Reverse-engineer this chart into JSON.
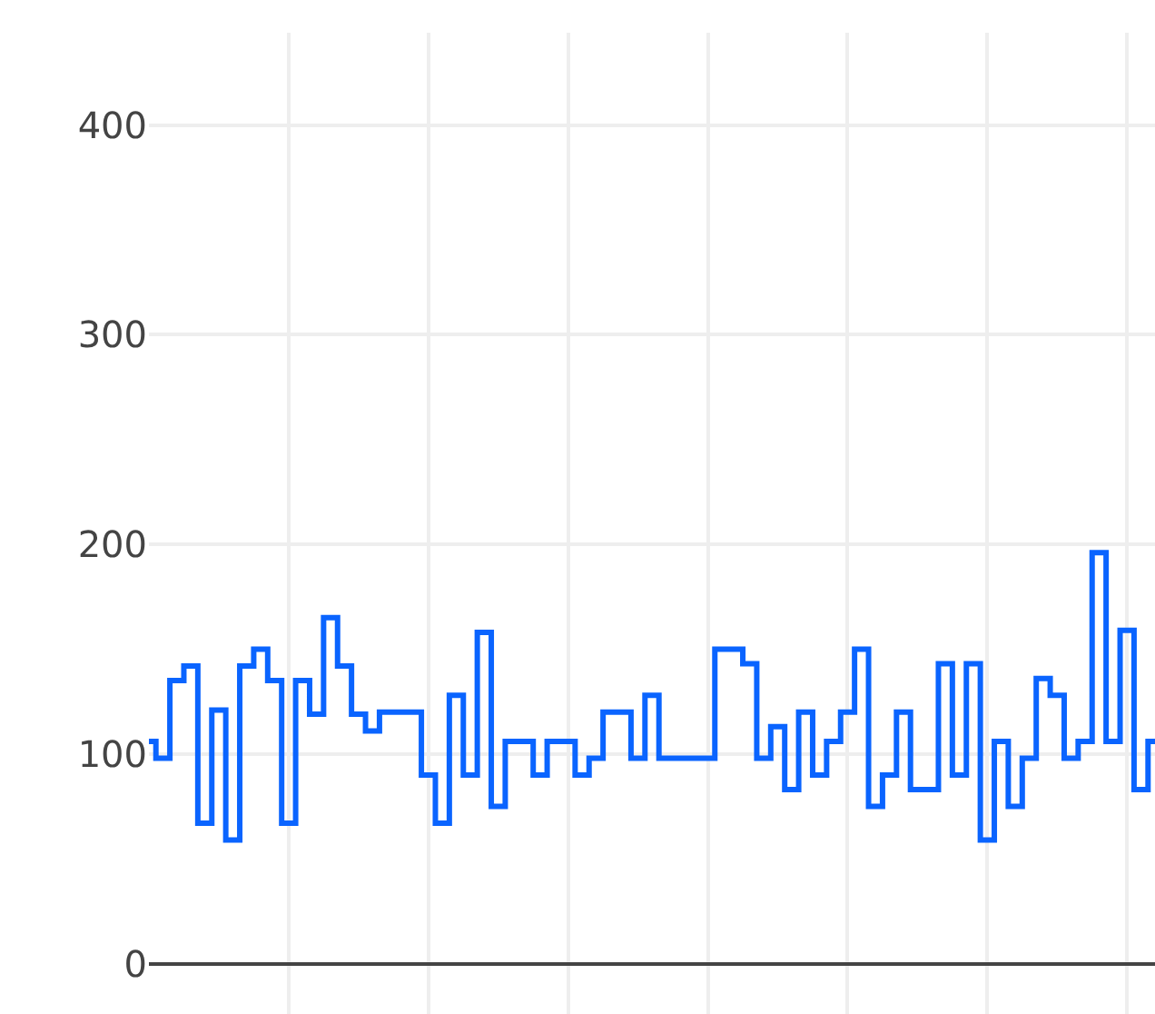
{
  "chart_data": {
    "type": "step",
    "categories": [
      null,
      null,
      null,
      null,
      null,
      null,
      null,
      null,
      null,
      null,
      null,
      null,
      null,
      null,
      null,
      null,
      null,
      null,
      null,
      null,
      null,
      null,
      null,
      null,
      null,
      null,
      null,
      null,
      null,
      null,
      null,
      null,
      null,
      null,
      null,
      null,
      null,
      null,
      null,
      null,
      null,
      null,
      null,
      null,
      null,
      null,
      null,
      null,
      null,
      null,
      null,
      null,
      null,
      null,
      null,
      null,
      null,
      null,
      null,
      null,
      null,
      null,
      null,
      null,
      null,
      null,
      null,
      null,
      null,
      null,
      null,
      null,
      null
    ],
    "series": [
      {
        "color": "#0a64ff",
        "values": [
          106,
          98,
          135,
          142,
          67,
          121,
          59,
          142,
          150,
          135,
          67,
          135,
          119,
          165,
          142,
          119,
          111,
          120,
          120,
          120,
          90,
          67,
          128,
          90,
          158,
          75,
          106,
          106,
          90,
          106,
          106,
          90,
          98,
          120,
          120,
          98,
          128,
          98,
          98,
          98,
          98,
          150,
          150,
          143,
          98,
          113,
          83,
          120,
          90,
          106,
          120,
          150,
          75,
          90,
          120,
          83,
          83,
          143,
          90,
          143,
          59,
          106,
          75,
          98,
          136,
          128,
          98,
          106,
          196,
          106,
          159,
          83,
          106
        ]
      }
    ],
    "ylim": [
      -24,
      444
    ],
    "yticks": [
      0,
      100,
      200,
      300,
      400
    ],
    "grid": true,
    "tick_labels": "y",
    "legend": false
  }
}
